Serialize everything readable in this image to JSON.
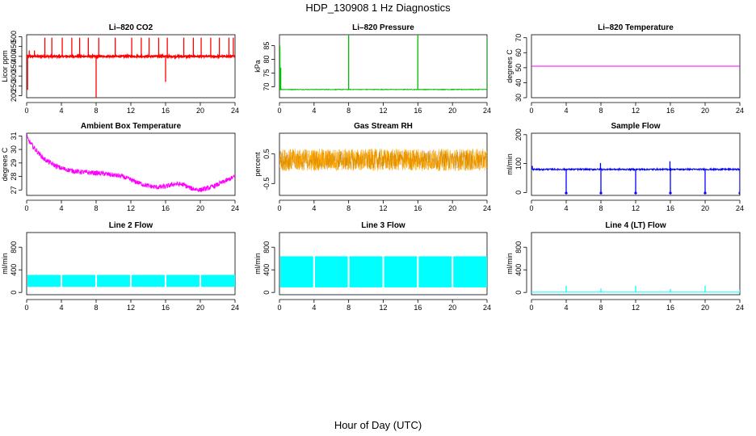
{
  "figure": {
    "title": "HDP_130908  1 Hz Diagnostics",
    "xlabel": "Hour of Day (UTC)"
  },
  "chart_data": [
    {
      "type": "line",
      "title": "Li–820 CO2",
      "ylabel": "Licor ppm",
      "color": "#ff0000",
      "xlim": [
        0,
        24
      ],
      "ylim": [
        190,
        510
      ],
      "xticks": [
        0,
        4,
        8,
        12,
        16,
        20,
        24
      ],
      "yticks": [
        200,
        250,
        300,
        350,
        400,
        450,
        500
      ],
      "baseline": 400,
      "noise": 8,
      "spikes": [
        {
          "x": 0.1,
          "y": 230
        },
        {
          "x": 0.3,
          "y": 430
        },
        {
          "x": 0.9,
          "y": 430
        },
        {
          "x": 2.1,
          "y": 495
        },
        {
          "x": 2.9,
          "y": 495
        },
        {
          "x": 4.1,
          "y": 495
        },
        {
          "x": 5.2,
          "y": 495
        },
        {
          "x": 6.1,
          "y": 495
        },
        {
          "x": 7.1,
          "y": 495
        },
        {
          "x": 8.0,
          "y": 190
        },
        {
          "x": 8.3,
          "y": 495
        },
        {
          "x": 10.2,
          "y": 495
        },
        {
          "x": 12.1,
          "y": 495
        },
        {
          "x": 13.2,
          "y": 495
        },
        {
          "x": 14.1,
          "y": 495
        },
        {
          "x": 15.2,
          "y": 495
        },
        {
          "x": 16.0,
          "y": 270
        },
        {
          "x": 16.2,
          "y": 495
        },
        {
          "x": 18.1,
          "y": 495
        },
        {
          "x": 19.2,
          "y": 495
        },
        {
          "x": 20.1,
          "y": 495
        },
        {
          "x": 21.2,
          "y": 495
        },
        {
          "x": 22.2,
          "y": 495
        },
        {
          "x": 23.3,
          "y": 495
        },
        {
          "x": 23.8,
          "y": 495
        }
      ]
    },
    {
      "type": "line",
      "title": "Li–820 Pressure",
      "ylabel": "kPa",
      "color": "#00c000",
      "xlim": [
        0,
        24
      ],
      "ylim": [
        66,
        89
      ],
      "xticks": [
        0,
        4,
        8,
        12,
        16,
        20,
        24
      ],
      "yticks": [
        70,
        75,
        80,
        85
      ],
      "baseline": 69,
      "noise": 0.2,
      "spikes": [
        {
          "x": 0.05,
          "y": 85
        },
        {
          "x": 0.15,
          "y": 77
        },
        {
          "x": 8.0,
          "y": 89
        },
        {
          "x": 16.0,
          "y": 89
        },
        {
          "x": 24.0,
          "y": 88
        }
      ]
    },
    {
      "type": "line",
      "title": "Li–820 Temperature",
      "ylabel": "degrees C",
      "color": "#ff00ff",
      "xlim": [
        0,
        24
      ],
      "ylim": [
        30,
        72
      ],
      "xticks": [
        0,
        4,
        8,
        12,
        16,
        20,
        24
      ],
      "yticks": [
        30,
        40,
        50,
        60,
        70
      ],
      "baseline": 51,
      "noise": 0,
      "spikes": []
    },
    {
      "type": "line",
      "title": "Ambient Box Temperature",
      "ylabel": "degrees C",
      "color": "#ff00ff",
      "xlim": [
        0,
        24
      ],
      "ylim": [
        26.6,
        31.2
      ],
      "xticks": [
        0,
        4,
        8,
        12,
        16,
        20,
        24
      ],
      "yticks": [
        27,
        28,
        29,
        30,
        31
      ],
      "points": [
        [
          0,
          30.9
        ],
        [
          0.5,
          30.4
        ],
        [
          1,
          30
        ],
        [
          2,
          29.3
        ],
        [
          3,
          28.9
        ],
        [
          4,
          28.6
        ],
        [
          5,
          28.45
        ],
        [
          6,
          28.35
        ],
        [
          7,
          28.3
        ],
        [
          8,
          28.25
        ],
        [
          9,
          28.2
        ],
        [
          10,
          28.1
        ],
        [
          11,
          28.0
        ],
        [
          12,
          27.75
        ],
        [
          13,
          27.5
        ],
        [
          14,
          27.3
        ],
        [
          15,
          27.2
        ],
        [
          16,
          27.25
        ],
        [
          17,
          27.45
        ],
        [
          18,
          27.4
        ],
        [
          19,
          27.1
        ],
        [
          20,
          27.0
        ],
        [
          21,
          27.15
        ],
        [
          22,
          27.4
        ],
        [
          23,
          27.7
        ],
        [
          24,
          28.0
        ]
      ],
      "noise": 0.35
    },
    {
      "type": "line",
      "title": "Gas Stream RH",
      "ylabel": "percent",
      "color": "#ffa500",
      "xlim": [
        0,
        24
      ],
      "ylim": [
        -0.9,
        1.2
      ],
      "xticks": [
        0,
        4,
        8,
        12,
        16,
        20,
        24
      ],
      "yticks": [
        -0.5,
        0.5
      ],
      "baseline": 0.3,
      "noise": 0.75,
      "spikes": []
    },
    {
      "type": "line",
      "title": "Sample Flow",
      "ylabel": "ml/min",
      "color": "#0000ff",
      "xlim": [
        0,
        24
      ],
      "ylim": [
        -10,
        205
      ],
      "xticks": [
        0,
        4,
        8,
        12,
        16,
        20,
        24
      ],
      "yticks": [
        0,
        100,
        200
      ],
      "baseline": 80,
      "noise": 5,
      "spikes": [
        {
          "x": 0.1,
          "y": 92
        },
        {
          "x": 4.0,
          "y": -2
        },
        {
          "x": 8.0,
          "y": -2
        },
        {
          "x": 7.95,
          "y": 102
        },
        {
          "x": 12.0,
          "y": -2
        },
        {
          "x": 16.0,
          "y": -2
        },
        {
          "x": 15.95,
          "y": 108
        },
        {
          "x": 20.0,
          "y": -2
        },
        {
          "x": 24.0,
          "y": -2
        }
      ]
    },
    {
      "type": "area",
      "title": "Line 2 Flow",
      "ylabel": "ml/min",
      "color": "#00ffff",
      "xlim": [
        0,
        24
      ],
      "ylim": [
        -40,
        1060
      ],
      "xticks": [
        0,
        4,
        8,
        12,
        16,
        20,
        24
      ],
      "yticks": [
        0,
        400,
        800
      ],
      "low": 100,
      "high": 310,
      "segments": [
        [
          0.1,
          3.9
        ],
        [
          4.1,
          7.9
        ],
        [
          8.1,
          11.9
        ],
        [
          12.1,
          15.9
        ],
        [
          16.1,
          19.9
        ],
        [
          20.1,
          24.0
        ]
      ],
      "spikes": []
    },
    {
      "type": "area",
      "title": "Line 3 Flow",
      "ylabel": "ml/min",
      "color": "#00ffff",
      "xlim": [
        0,
        24
      ],
      "ylim": [
        -40,
        1060
      ],
      "xticks": [
        0,
        4,
        8,
        12,
        16,
        20,
        24
      ],
      "yticks": [
        0,
        400,
        800
      ],
      "low": 90,
      "high": 640,
      "segments": [
        [
          0.1,
          3.9
        ],
        [
          4.1,
          7.9
        ],
        [
          8.1,
          11.9
        ],
        [
          12.1,
          15.9
        ],
        [
          16.1,
          19.9
        ],
        [
          20.1,
          24.0
        ]
      ],
      "spikes": []
    },
    {
      "type": "line",
      "title": "Line 4 (LT) Flow",
      "ylabel": "ml/min",
      "color": "#00ffff",
      "xlim": [
        0,
        24
      ],
      "ylim": [
        -40,
        1060
      ],
      "xticks": [
        0,
        4,
        8,
        12,
        16,
        20,
        24
      ],
      "yticks": [
        0,
        400,
        800
      ],
      "baseline": 5,
      "noise": 0,
      "spikes": [
        {
          "x": 4.0,
          "y": 120
        },
        {
          "x": 8.0,
          "y": 70
        },
        {
          "x": 12.0,
          "y": 120
        },
        {
          "x": 16.0,
          "y": 60
        },
        {
          "x": 20.0,
          "y": 120
        },
        {
          "x": 24.0,
          "y": 50
        }
      ]
    }
  ]
}
